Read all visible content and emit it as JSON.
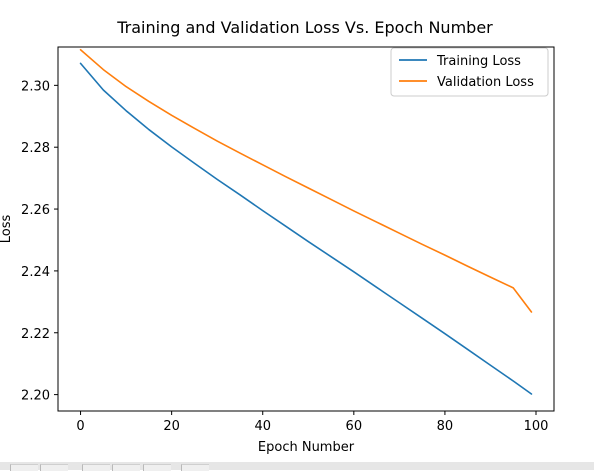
{
  "chart_data": {
    "type": "line",
    "title": "Training and Validation Loss Vs. Epoch Number",
    "xlabel": "Epoch Number",
    "ylabel": "Loss",
    "xlim": [
      -4.95,
      103.95
    ],
    "ylim": [
      2.1947,
      2.3124
    ],
    "xticks": [
      0,
      20,
      40,
      60,
      80,
      100
    ],
    "yticks": [
      2.2,
      2.22,
      2.24,
      2.26,
      2.28,
      2.3
    ],
    "x_tick_labels": [
      "0",
      "20",
      "40",
      "60",
      "80",
      "100"
    ],
    "y_tick_labels": [
      "2.20",
      "2.22",
      "2.24",
      "2.26",
      "2.28",
      "2.30"
    ],
    "legend_position": "top-right",
    "grid": false,
    "x": [
      0,
      5,
      10,
      15,
      20,
      25,
      30,
      35,
      40,
      45,
      50,
      55,
      60,
      65,
      70,
      75,
      80,
      85,
      90,
      95,
      99
    ],
    "series": [
      {
        "name": "Training Loss",
        "color": "#1f77b4",
        "values": [
          2.3071,
          2.2985,
          2.2918,
          2.2857,
          2.2801,
          2.2748,
          2.2696,
          2.2646,
          2.2595,
          2.2545,
          2.2495,
          2.2446,
          2.2397,
          2.2347,
          2.2297,
          2.2247,
          2.2197,
          2.2146,
          2.2095,
          2.2044,
          2.2002
        ]
      },
      {
        "name": "Validation Loss",
        "color": "#ff7f0e",
        "values": [
          2.3115,
          2.3051,
          2.2996,
          2.2948,
          2.2903,
          2.2861,
          2.282,
          2.2781,
          2.2743,
          2.2705,
          2.2668,
          2.2631,
          2.2594,
          2.2558,
          2.2522,
          2.2486,
          2.2451,
          2.2415,
          2.238,
          2.2345,
          2.2267
        ]
      }
    ]
  }
}
